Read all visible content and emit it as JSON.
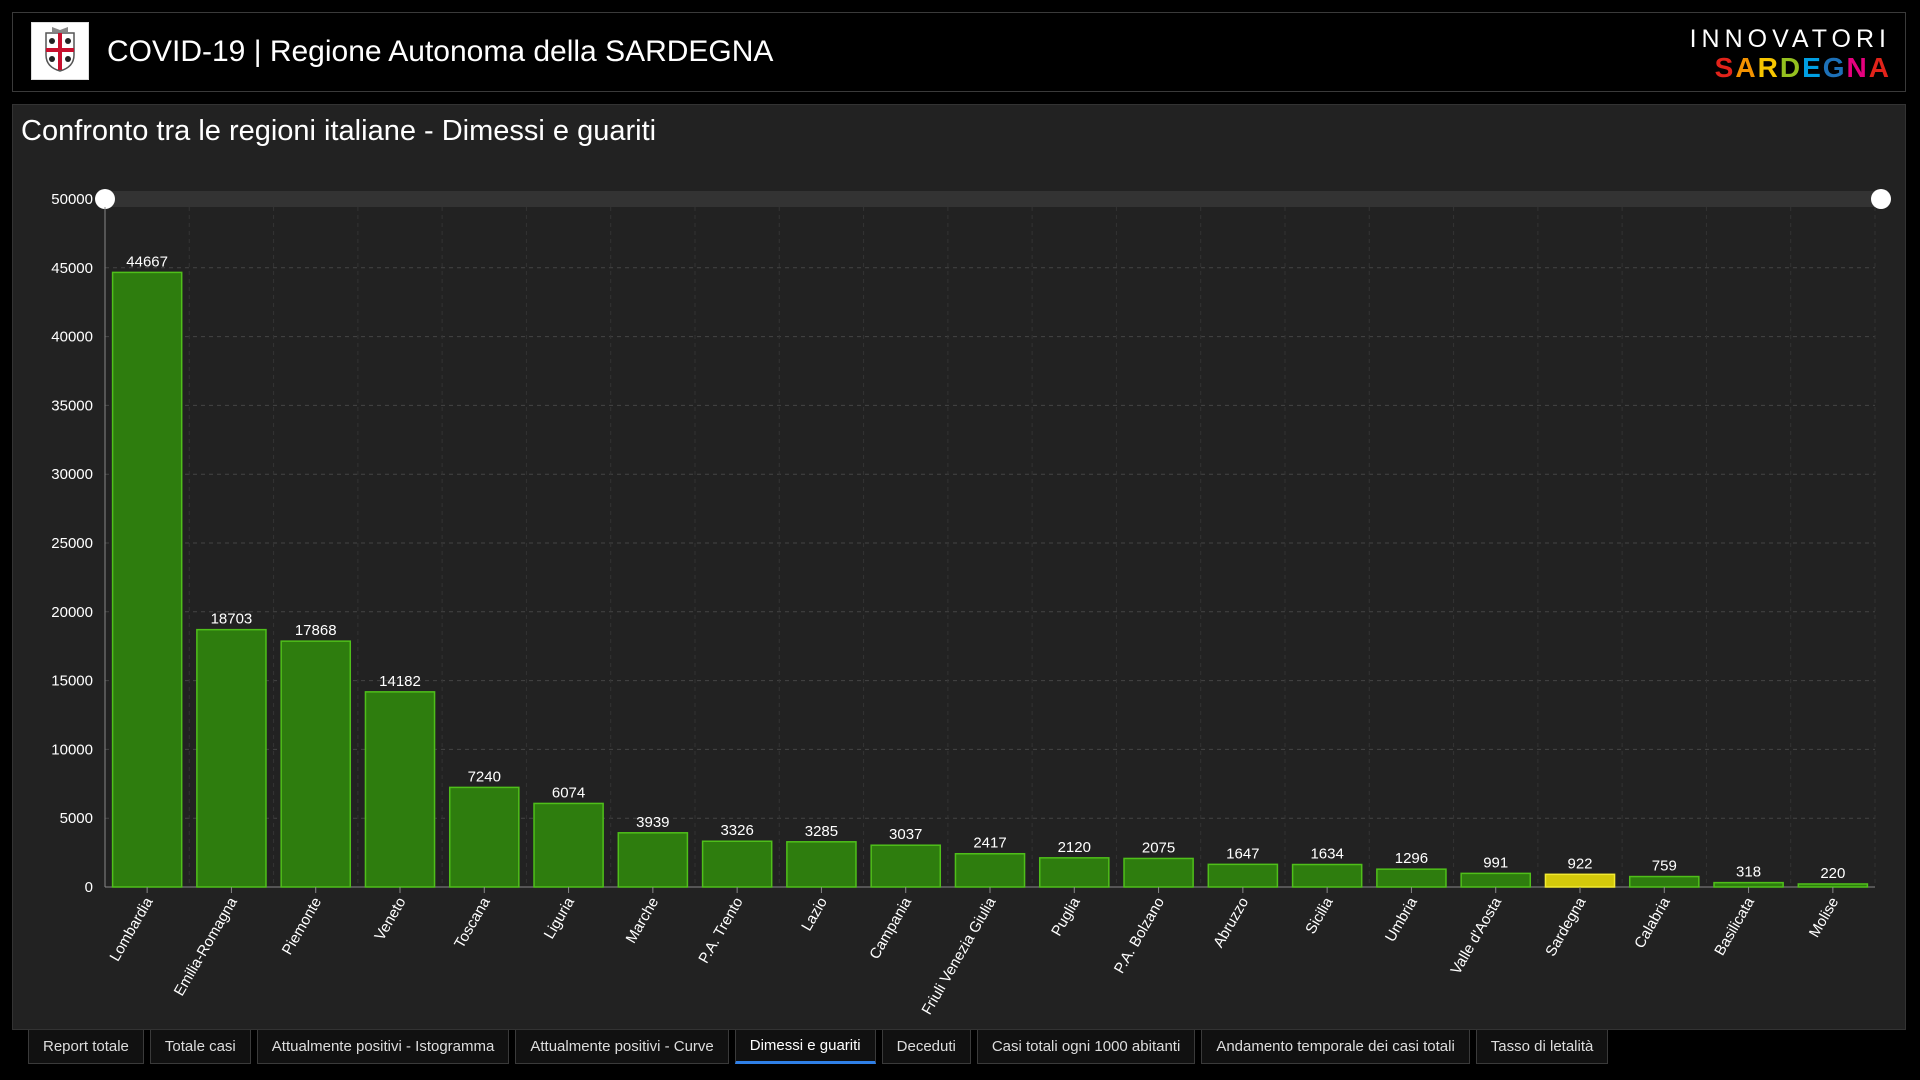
{
  "header": {
    "title": "COVID-19 | Regione Autonoma della SARDEGNA",
    "brand_top": "INNOVATORI",
    "brand_bottom": "SARDEGNA",
    "brand_colors": [
      "#e2231a",
      "#f39200",
      "#f7c600",
      "#95c11f",
      "#009fe3",
      "#1d71b8",
      "#e6007e",
      "#e2231a"
    ]
  },
  "panel": {
    "title": "Confronto tra le regioni italiane - Dimessi e guariti"
  },
  "chart_data": {
    "type": "bar",
    "categories": [
      "Lombardia",
      "Emilia-Romagna",
      "Piemonte",
      "Veneto",
      "Toscana",
      "Liguria",
      "Marche",
      "P.A. Trento",
      "Lazio",
      "Campania",
      "Friuli Venezia Giulia",
      "Puglia",
      "P.A. Bolzano",
      "Abruzzo",
      "Sicilia",
      "Umbria",
      "Valle d'Aosta",
      "Sardegna",
      "Calabria",
      "Basilicata",
      "Molise"
    ],
    "values": [
      44667,
      18703,
      17868,
      14182,
      7240,
      6074,
      3939,
      3326,
      3285,
      3037,
      2417,
      2120,
      2075,
      1647,
      1634,
      1296,
      991,
      922,
      759,
      318,
      220
    ],
    "highlight": "Sardegna",
    "colors": {
      "bar": "#2e7d0e",
      "bar_border": "#4fbf1a",
      "highlight": "#d4c90a",
      "highlight_border": "#f2ea30"
    },
    "y_ticks": [
      0,
      5000,
      10000,
      15000,
      20000,
      25000,
      30000,
      35000,
      40000,
      45000,
      50000
    ],
    "ylim": [
      0,
      50000
    ],
    "title": "",
    "xlabel": "",
    "ylabel": "",
    "grid": true
  },
  "tabs": [
    {
      "label": "Report totale",
      "active": false
    },
    {
      "label": "Totale casi",
      "active": false
    },
    {
      "label": "Attualmente positivi - Istogramma",
      "active": false
    },
    {
      "label": "Attualmente positivi - Curve",
      "active": false
    },
    {
      "label": "Dimessi e guariti",
      "active": true
    },
    {
      "label": "Deceduti",
      "active": false
    },
    {
      "label": "Casi totali ogni 1000 abitanti",
      "active": false
    },
    {
      "label": "Andamento temporale dei casi totali",
      "active": false
    },
    {
      "label": "Tasso di letalità",
      "active": false
    }
  ]
}
